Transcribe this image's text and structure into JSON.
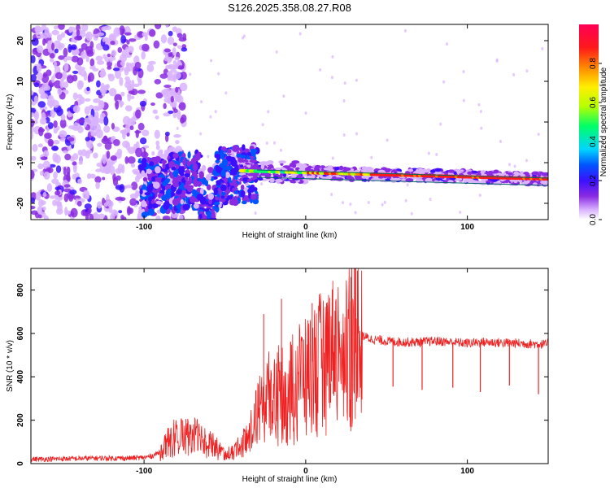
{
  "figure_title": "S126.2025.358.08.27.R08",
  "chart_data": [
    {
      "type": "heatmap",
      "xlabel": "Height of straight line (km)",
      "ylabel": "Frequency (Hz)",
      "xlim": [
        -170,
        150
      ],
      "ylim": [
        -24,
        24
      ],
      "x_ticks": [
        "-100",
        "0",
        "100"
      ],
      "y_ticks": [
        "20",
        "10",
        "0",
        "-10",
        "-20"
      ],
      "colorbar": {
        "label": "Normalized spectral amplitude",
        "range": [
          0,
          1
        ],
        "ticks": [
          "0.0",
          "0.2",
          "0.4",
          "0.6",
          "0.8"
        ],
        "colors": [
          "#ffffff",
          "#d9b3ff",
          "#8a2be2",
          "#3b10ff",
          "#0055ff",
          "#00d5ff",
          "#00ff66",
          "#b6ff00",
          "#ffee00",
          "#ff8800",
          "#ff1a1a",
          "#ff0055"
        ]
      },
      "features": {
        "scatter_region_x": [
          -170,
          -90
        ],
        "tone_line_x": [
          -40,
          150
        ],
        "tone_line_freq": [
          -12,
          -14
        ],
        "tone_line_color": "#006666"
      },
      "grid": false
    },
    {
      "type": "line",
      "xlabel": "Height of straight line (km)",
      "ylabel": "SNR (10 * v/v)",
      "xlim": [
        -170,
        150
      ],
      "ylim": [
        0,
        900
      ],
      "x_ticks": [
        "-100",
        "0",
        "100"
      ],
      "y_ticks": [
        "0",
        "200",
        "400",
        "600",
        "800"
      ],
      "series_color": "#ee2222",
      "series": [
        {
          "x": [
            -170,
            -150,
            -130,
            -110,
            -100,
            -95,
            -90,
            -85,
            -80,
            -75,
            -70,
            -65,
            -60,
            -55,
            -50,
            -45,
            -40,
            -35,
            -30,
            -25,
            -20,
            -15,
            -10,
            -5,
            0,
            5,
            10,
            15,
            20,
            25,
            30,
            32,
            35,
            40,
            50,
            60,
            70,
            80,
            90,
            100,
            110,
            120,
            130,
            140,
            150
          ],
          "y": [
            20,
            22,
            25,
            25,
            28,
            35,
            55,
            110,
            150,
            140,
            145,
            130,
            120,
            80,
            45,
            60,
            90,
            150,
            240,
            310,
            380,
            340,
            390,
            430,
            430,
            480,
            520,
            560,
            570,
            590,
            720,
            640,
            590,
            575,
            565,
            560,
            560,
            565,
            560,
            555,
            560,
            558,
            555,
            552,
            550
          ]
        }
      ],
      "dips": [
        {
          "x": 54,
          "y": 355
        },
        {
          "x": 72,
          "y": 340
        },
        {
          "x": 91,
          "y": 350
        },
        {
          "x": 108,
          "y": 330
        },
        {
          "x": 126,
          "y": 360
        },
        {
          "x": 144,
          "y": 320
        }
      ],
      "spikes": [
        {
          "x": 32,
          "y": 890
        },
        {
          "x": 28,
          "y": 860
        },
        {
          "x": -26,
          "y": 690
        },
        {
          "x": -15,
          "y": 760
        },
        {
          "x": 4,
          "y": 740
        }
      ],
      "grid": false
    }
  ]
}
